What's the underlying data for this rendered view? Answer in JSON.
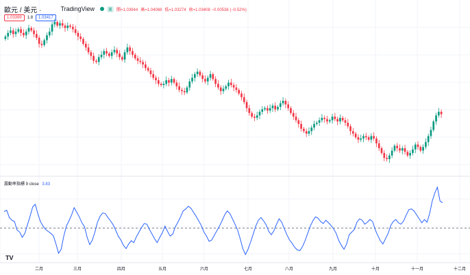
{
  "header": {
    "symbol": "歐元 / 美元 ·",
    "brand": "TradingView",
    "ohlc_pill": "美",
    "open": "開=1.03944",
    "high": "高=1.04068",
    "low": "低=1.03274",
    "close": "收=1.03408 −0.00536 (−0.52%)"
  },
  "tags": {
    "sell": "1.03399",
    "spread": "1.8",
    "buy": "1.03417"
  },
  "indicator": {
    "name": "震動率指標 9 close",
    "value": "3.83"
  },
  "x_axis": [
    "二月",
    "三月",
    "四月",
    "五月",
    "六月",
    "七月",
    "八月",
    "九月",
    "十月",
    "十一月",
    "十二月"
  ],
  "logo": "TV",
  "colors": {
    "up": "#089981",
    "down": "#f23645",
    "line": "#2962ff",
    "dash": "#787b86"
  },
  "chart_data": [
    {
      "type": "candlestick",
      "note": "Daily EUR/USD closes (approximate relative path)",
      "closes": [
        1.04,
        1.043,
        1.045,
        1.042,
        1.044,
        1.046,
        1.043,
        1.041,
        1.044,
        1.047,
        1.045,
        1.042,
        1.039,
        1.034,
        1.033,
        1.037,
        1.041,
        1.044,
        1.05,
        1.052,
        1.049,
        1.051,
        1.049,
        1.047,
        1.049,
        1.048,
        1.046,
        1.043,
        1.04,
        1.038,
        1.034,
        1.031,
        1.027,
        1.024,
        1.02,
        1.019,
        1.023,
        1.025,
        1.028,
        1.026,
        1.024,
        1.027,
        1.029,
        1.026,
        1.023,
        1.021,
        1.027,
        1.031,
        1.028,
        1.025,
        1.022,
        1.02,
        1.019,
        1.017,
        1.014,
        1.012,
        1.009,
        1.006,
        1.004,
        1.001,
        1.0,
        1.001,
        1.004,
        1.002,
        1.005,
        1.002,
        0.999,
        0.996,
        0.995,
        0.994,
        0.998,
        1.003,
        1.006,
        1.009,
        1.011,
        1.008,
        1.005,
        1.003,
        1.006,
        1.009,
        1.005,
        1.001,
        0.998,
        0.995,
        0.997,
        0.999,
        1.002,
        1.0,
        0.998,
        0.996,
        0.993,
        0.99,
        0.986,
        0.981,
        0.977,
        0.974,
        0.973,
        0.975,
        0.978,
        0.98,
        0.981,
        0.979,
        0.981,
        0.983,
        0.98,
        0.982,
        0.985,
        0.987,
        0.984,
        0.981,
        0.977,
        0.974,
        0.971,
        0.968,
        0.964,
        0.962,
        0.96,
        0.962,
        0.965,
        0.968,
        0.969,
        0.971,
        0.973,
        0.972,
        0.97,
        0.971,
        0.974,
        0.972,
        0.97,
        0.973,
        0.971,
        0.969,
        0.966,
        0.962,
        0.96,
        0.957,
        0.955,
        0.956,
        0.958,
        0.957,
        0.955,
        0.958,
        0.956,
        0.952,
        0.948,
        0.944,
        0.94,
        0.939,
        0.942,
        0.946,
        0.95,
        0.948,
        0.946,
        0.948,
        0.945,
        0.942,
        0.944,
        0.947,
        0.951,
        0.949,
        0.946,
        0.949,
        0.953,
        0.958,
        0.963,
        0.97,
        0.975,
        0.978,
        0.976
      ],
      "last_close": 1.03408
    },
    {
      "type": "line",
      "name": "震動率指標 9 close",
      "values": [
        2.5,
        2.7,
        1.6,
        1.2,
        1.0,
        -0.3,
        -0.6,
        -1.4,
        -0.8,
        0.5,
        1.8,
        3.2,
        3.6,
        2.2,
        1.0,
        0.3,
        -0.2,
        -0.5,
        -0.8,
        -1.2,
        -2.4,
        -3.8,
        -3.2,
        -1.2,
        0.3,
        1.1,
        2.0,
        3.1,
        2.4,
        1.7,
        0.8,
        0.2,
        -1.4,
        -2.5,
        -1.8,
        -0.6,
        0.9,
        1.8,
        2.3,
        2.2,
        1.6,
        1.1,
        0.5,
        -0.3,
        -1.2,
        -1.8,
        -2.6,
        -3.1,
        -2.4,
        -1.9,
        -2.2,
        -1.3,
        -0.6,
        0.1,
        0.7,
        0.6,
        -0.2,
        -0.9,
        -1.6,
        -2.2,
        -1.4,
        -0.7,
        0.3,
        -0.5,
        -1.2,
        -0.9,
        0.2,
        0.9,
        1.7,
        2.6,
        2.9,
        3.3,
        3.0,
        2.4,
        1.8,
        1.1,
        0.4,
        -0.6,
        -1.2,
        -2.0,
        -1.8,
        -1.1,
        -0.4,
        0.3,
        1.1,
        2.0,
        2.6,
        2.2,
        1.4,
        0.6,
        -0.3,
        -1.6,
        -3.1,
        -4.0,
        -3.2,
        -2.1,
        -0.9,
        0.3,
        1.2,
        1.6,
        1.1,
        0.5,
        -0.5,
        -1.0,
        -0.4,
        0.6,
        1.4,
        0.9,
        -0.1,
        -1.0,
        -1.8,
        -2.3,
        -2.9,
        -3.3,
        -3.4,
        -2.8,
        -1.9,
        -0.8,
        0.3,
        1.1,
        1.7,
        1.5,
        1.0,
        0.7,
        1.2,
        0.8,
        0.4,
        -0.1,
        -0.8,
        -1.9,
        -2.6,
        -3.2,
        -2.4,
        -1.0,
        -0.6,
        -0.2,
        0.9,
        1.4,
        1.2,
        0.6,
        0.9,
        1.3,
        1.0,
        -0.2,
        -1.1,
        -1.9,
        -2.4,
        -1.6,
        -0.8,
        0.4,
        1.0,
        1.3,
        0.8,
        0.6,
        1.1,
        2.0,
        2.8,
        2.9,
        2.6,
        2.0,
        1.4,
        0.8,
        1.3,
        0.9,
        2.2,
        4.1,
        5.3,
        6.2,
        4.1,
        3.83
      ],
      "zero_line": 0
    }
  ]
}
